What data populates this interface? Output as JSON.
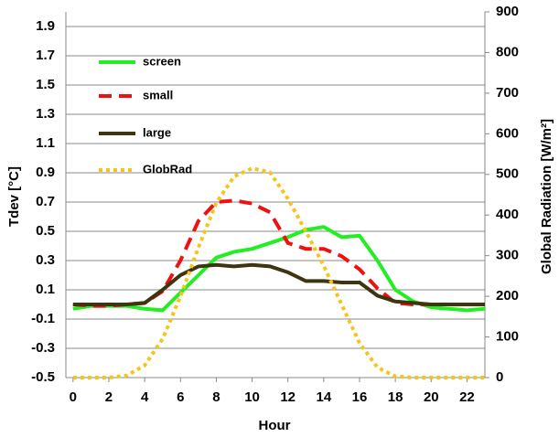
{
  "chart_data": {
    "type": "line",
    "x_label": "Hour",
    "y_label": "Tdev [°C]",
    "y2_label": "Global Radiation [W/m²]",
    "x": [
      0,
      1,
      2,
      3,
      4,
      5,
      6,
      7,
      8,
      9,
      10,
      11,
      12,
      13,
      14,
      15,
      16,
      17,
      18,
      19,
      20,
      21,
      22,
      23
    ],
    "xlim": [
      -0.4,
      23
    ],
    "xticks": [
      0,
      2,
      4,
      6,
      8,
      10,
      12,
      14,
      16,
      18,
      20,
      22
    ],
    "ylim": [
      -0.5,
      2.0
    ],
    "yticks": [
      -0.5,
      -0.3,
      -0.1,
      0.1,
      0.3,
      0.5,
      0.7,
      0.9,
      1.1,
      1.3,
      1.5,
      1.7,
      1.9
    ],
    "y2lim": [
      0,
      900
    ],
    "y2ticks": [
      0,
      100,
      200,
      300,
      400,
      500,
      600,
      700,
      800,
      900
    ],
    "grid": true,
    "legend": "upper-left",
    "series": [
      {
        "name": "screen",
        "color": "#22ee22",
        "dash": "solid",
        "values": [
          -0.03,
          -0.01,
          -0.01,
          -0.01,
          -0.03,
          -0.04,
          0.08,
          0.2,
          0.32,
          0.36,
          0.38,
          0.42,
          0.46,
          0.51,
          0.53,
          0.46,
          0.47,
          0.3,
          0.1,
          0.02,
          -0.02,
          -0.03,
          -0.04,
          -0.03
        ]
      },
      {
        "name": "small",
        "color": "#ee1111",
        "dash": "dashed",
        "values": [
          0,
          -0.01,
          -0.01,
          0,
          0.01,
          0.09,
          0.3,
          0.57,
          0.7,
          0.71,
          0.69,
          0.63,
          0.42,
          0.38,
          0.38,
          0.33,
          0.24,
          0.11,
          0.01,
          0,
          0,
          0,
          0,
          0
        ]
      },
      {
        "name": "large",
        "color": "#3d3410",
        "dash": "solid",
        "values": [
          0,
          0,
          0,
          0,
          0.01,
          0.1,
          0.2,
          0.26,
          0.27,
          0.26,
          0.27,
          0.26,
          0.22,
          0.16,
          0.16,
          0.15,
          0.15,
          0.06,
          0.02,
          0.01,
          0,
          0,
          0,
          0
        ]
      },
      {
        "name": "GlobRad",
        "color": "#f5c518",
        "dash": "dotted",
        "axis": "y2",
        "values": [
          0,
          0,
          0,
          5,
          30,
          95,
          200,
          320,
          430,
          495,
          515,
          505,
          440,
          360,
          275,
          180,
          85,
          25,
          3,
          0,
          0,
          0,
          0,
          0
        ]
      }
    ]
  }
}
